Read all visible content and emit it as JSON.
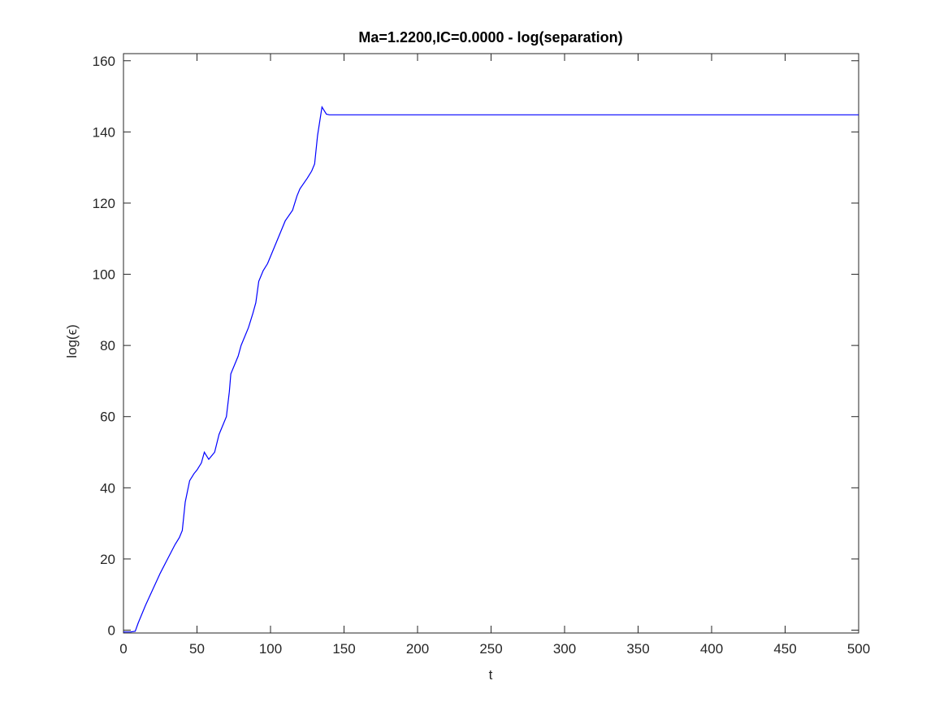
{
  "chart_data": {
    "type": "line",
    "title": "Ma=1.2200,IC=0.0000 - log(separation)",
    "x_label": "t",
    "y_label": "log(ϵ)",
    "x": [
      0,
      5,
      8,
      10,
      15,
      20,
      25,
      30,
      35,
      38,
      40,
      42,
      45,
      48,
      50,
      53,
      55,
      58,
      60,
      62,
      65,
      68,
      70,
      72,
      73,
      75,
      78,
      80,
      85,
      88,
      90,
      92,
      95,
      98,
      100,
      105,
      108,
      110,
      115,
      118,
      120,
      125,
      128,
      130,
      132,
      135,
      138,
      140,
      200,
      300,
      400,
      500
    ],
    "values": [
      -0.5,
      -0.5,
      -0.3,
      2,
      7,
      11.5,
      16,
      20,
      24,
      26,
      28,
      36,
      42,
      44,
      45,
      47,
      50,
      48,
      49,
      50,
      55,
      58,
      60,
      67,
      72,
      74,
      77,
      80,
      85,
      89,
      92,
      98,
      101,
      103,
      105,
      110,
      113,
      115,
      118,
      122,
      124,
      127,
      129,
      131,
      139,
      147,
      145,
      144.8,
      144.8,
      144.8,
      144.8,
      144.8
    ],
    "color": "#0000ff",
    "xlim": [
      0,
      500
    ],
    "xticks": [
      0,
      50,
      100,
      150,
      200,
      250,
      300,
      350,
      400,
      450,
      500
    ],
    "ylim": [
      -0.8,
      162
    ],
    "yticks": [
      0,
      20,
      40,
      60,
      80,
      100,
      120,
      140,
      160
    ]
  }
}
